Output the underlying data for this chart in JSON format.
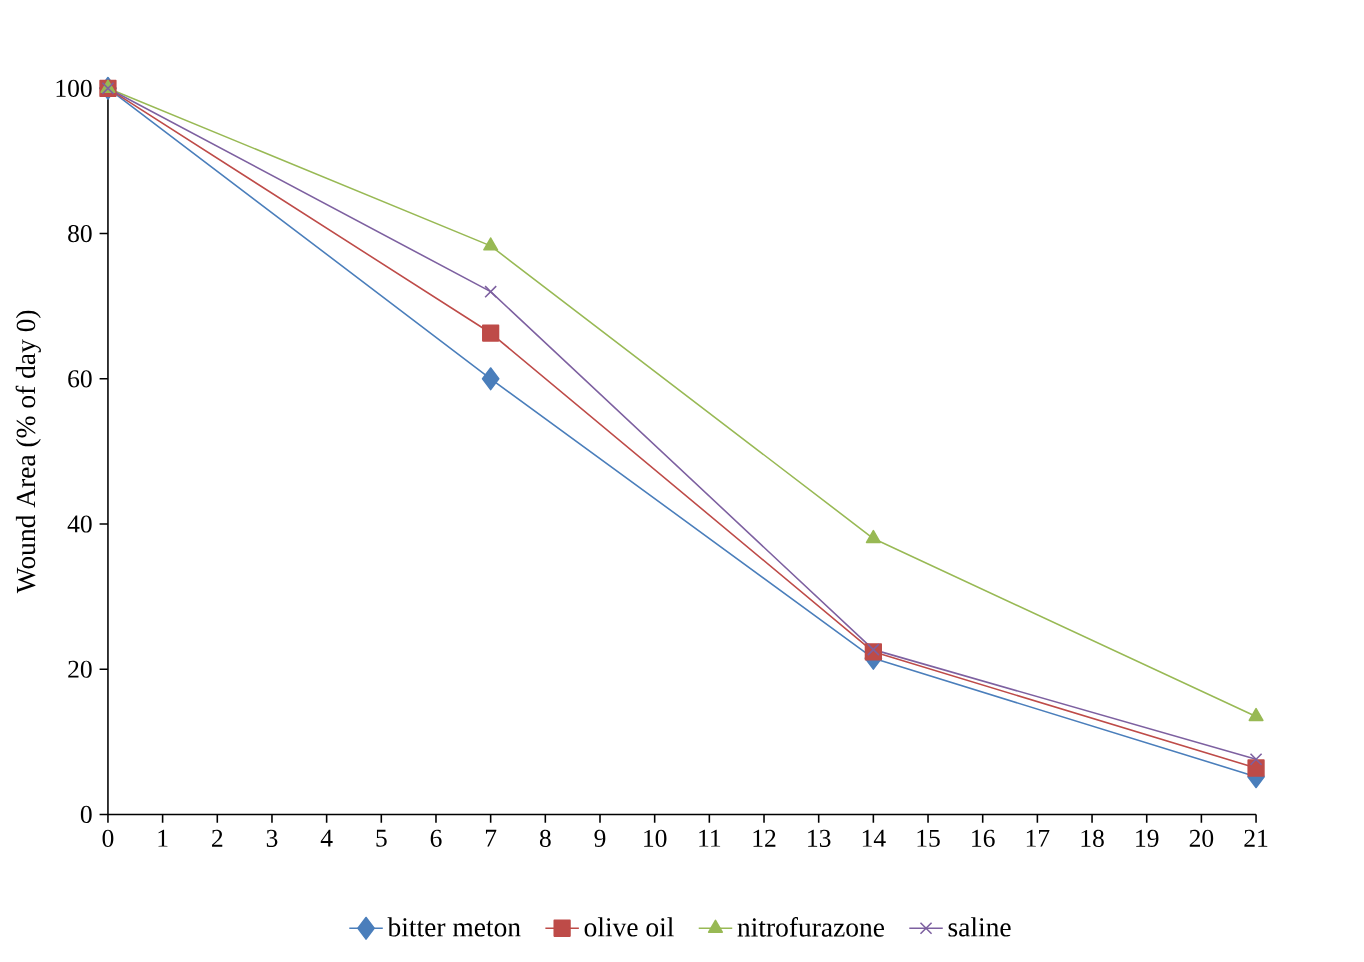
{
  "chart_data": {
    "type": "line",
    "ylabel": "Wound Area (% of day 0)",
    "x": [
      0,
      7,
      14,
      21
    ],
    "series": [
      {
        "name": "bitter meton",
        "color": "#4a7ebb",
        "marker": "diamond",
        "values": [
          100,
          60,
          21.5,
          5.2
        ]
      },
      {
        "name": "olive oil",
        "color": "#be4b48",
        "marker": "square",
        "values": [
          100,
          66.3,
          22.4,
          6.4
        ]
      },
      {
        "name": "nitrofurazone",
        "color": "#98b954",
        "marker": "triangle",
        "values": [
          100,
          78.3,
          38,
          13.5
        ]
      },
      {
        "name": "saline",
        "color": "#7d60a0",
        "marker": "cross",
        "values": [
          100,
          72,
          22.7,
          7.6
        ]
      }
    ],
    "xlim": [
      0,
      21
    ],
    "xticks": [
      0,
      1,
      2,
      3,
      4,
      5,
      6,
      7,
      8,
      9,
      10,
      11,
      12,
      13,
      14,
      15,
      16,
      17,
      18,
      19,
      20,
      21
    ],
    "ylim": [
      0,
      100
    ],
    "yticks": [
      0,
      20,
      40,
      60,
      80,
      100
    ],
    "grid": false,
    "legend": "bottom",
    "line_style": "solid"
  }
}
